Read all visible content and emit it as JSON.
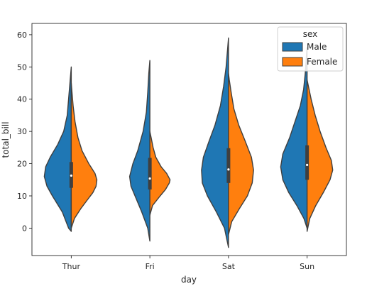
{
  "chart_data": {
    "type": "violin",
    "split": true,
    "xlabel": "day",
    "ylabel": "total_bill",
    "categories": [
      "Thur",
      "Fri",
      "Sat",
      "Sun"
    ],
    "ylim": [
      -8.5,
      63.5
    ],
    "yticks": [
      0,
      10,
      20,
      30,
      40,
      50,
      60
    ],
    "grid": false,
    "legend": {
      "title": "sex",
      "placement": "top-right"
    },
    "colors": {
      "Male": "#1f77b4",
      "Female": "#ff7f0e",
      "edge": "#3f3f3f",
      "box": "#3f3f3f"
    },
    "series": [
      {
        "name": "Male",
        "violins": [
          {
            "category": "Thur",
            "profile": [
              [
                -1,
                0
              ],
              [
                0,
                0.1
              ],
              [
                5,
                0.33
              ],
              [
                10,
                0.7
              ],
              [
                13,
                0.9
              ],
              [
                16,
                1.0
              ],
              [
                19,
                0.95
              ],
              [
                22,
                0.78
              ],
              [
                26,
                0.5
              ],
              [
                30,
                0.28
              ],
              [
                35,
                0.15
              ],
              [
                40,
                0.1
              ],
              [
                45,
                0.05
              ],
              [
                50,
                0.0
              ]
            ],
            "q1": 12.5,
            "median": 16.3,
            "q3": 20.5
          },
          {
            "category": "Fri",
            "profile": [
              [
                -4,
                0
              ],
              [
                0,
                0.08
              ],
              [
                5,
                0.3
              ],
              [
                10,
                0.55
              ],
              [
                13,
                0.7
              ],
              [
                16,
                0.75
              ],
              [
                20,
                0.63
              ],
              [
                24,
                0.45
              ],
              [
                30,
                0.25
              ],
              [
                36,
                0.13
              ],
              [
                42,
                0.08
              ],
              [
                48,
                0.04
              ],
              [
                52,
                0.0
              ]
            ],
            "q1": 12.0,
            "median": 15.4,
            "q3": 21.8
          },
          {
            "category": "Sat",
            "profile": [
              [
                -6,
                0
              ],
              [
                0,
                0.15
              ],
              [
                5,
                0.45
              ],
              [
                10,
                0.78
              ],
              [
                14,
                0.97
              ],
              [
                18,
                1.0
              ],
              [
                22,
                0.93
              ],
              [
                27,
                0.72
              ],
              [
                32,
                0.5
              ],
              [
                38,
                0.3
              ],
              [
                44,
                0.18
              ],
              [
                50,
                0.09
              ],
              [
                55,
                0.04
              ],
              [
                59,
                0.0
              ]
            ],
            "q1": 14.0,
            "median": 18.2,
            "q3": 24.8
          },
          {
            "category": "Sun",
            "profile": [
              [
                0,
                0
              ],
              [
                3,
                0.12
              ],
              [
                7,
                0.38
              ],
              [
                11,
                0.68
              ],
              [
                15,
                0.9
              ],
              [
                19,
                0.98
              ],
              [
                23,
                0.9
              ],
              [
                28,
                0.65
              ],
              [
                33,
                0.45
              ],
              [
                38,
                0.25
              ],
              [
                43,
                0.13
              ],
              [
                48,
                0.07
              ],
              [
                53,
                0.03
              ],
              [
                56,
                0.0
              ]
            ],
            "q1": 15.0,
            "median": 19.6,
            "q3": 25.7
          }
        ]
      },
      {
        "name": "Female",
        "violins": [
          {
            "category": "Thur",
            "profile": [
              [
                0,
                0
              ],
              [
                3,
                0.12
              ],
              [
                6,
                0.35
              ],
              [
                9,
                0.62
              ],
              [
                11,
                0.8
              ],
              [
                13,
                0.92
              ],
              [
                15,
                0.95
              ],
              [
                17,
                0.88
              ],
              [
                20,
                0.65
              ],
              [
                24,
                0.4
              ],
              [
                28,
                0.25
              ],
              [
                33,
                0.14
              ],
              [
                38,
                0.07
              ],
              [
                43,
                0.02
              ],
              [
                45,
                0.0
              ]
            ],
            "q1": 12.5,
            "median": 16.3,
            "q3": 20.5
          },
          {
            "category": "Fri",
            "profile": [
              [
                4,
                0
              ],
              [
                7,
                0.1
              ],
              [
                10,
                0.38
              ],
              [
                12,
                0.58
              ],
              [
                14,
                0.72
              ],
              [
                15,
                0.75
              ],
              [
                17,
                0.62
              ],
              [
                19,
                0.42
              ],
              [
                22,
                0.22
              ],
              [
                25,
                0.12
              ],
              [
                28,
                0.05
              ],
              [
                30,
                0.0
              ]
            ],
            "q1": 12.0,
            "median": 15.4,
            "q3": 21.8
          },
          {
            "category": "Sat",
            "profile": [
              [
                -2,
                0
              ],
              [
                2,
                0.12
              ],
              [
                6,
                0.4
              ],
              [
                10,
                0.7
              ],
              [
                14,
                0.88
              ],
              [
                18,
                0.93
              ],
              [
                22,
                0.85
              ],
              [
                27,
                0.62
              ],
              [
                32,
                0.38
              ],
              [
                37,
                0.2
              ],
              [
                42,
                0.1
              ],
              [
                46,
                0.03
              ],
              [
                48,
                0.0
              ]
            ],
            "q1": 14.0,
            "median": 18.2,
            "q3": 24.8
          },
          {
            "category": "Sun",
            "profile": [
              [
                -1,
                0
              ],
              [
                3,
                0.1
              ],
              [
                7,
                0.32
              ],
              [
                11,
                0.6
              ],
              [
                15,
                0.85
              ],
              [
                18,
                0.95
              ],
              [
                21,
                0.9
              ],
              [
                25,
                0.7
              ],
              [
                30,
                0.48
              ],
              [
                35,
                0.3
              ],
              [
                40,
                0.15
              ],
              [
                44,
                0.05
              ],
              [
                46,
                0.0
              ]
            ],
            "q1": 15.0,
            "median": 19.6,
            "q3": 25.7
          }
        ]
      }
    ]
  }
}
